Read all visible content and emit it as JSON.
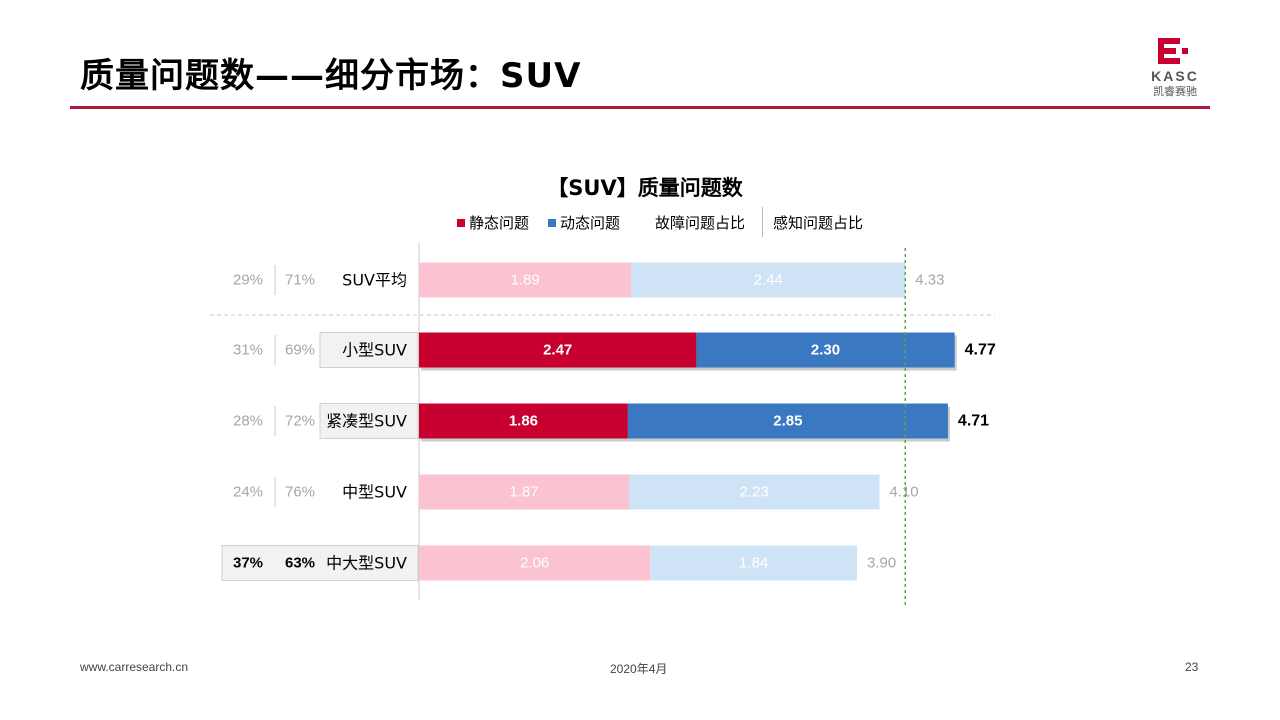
{
  "page": {
    "title": "质量问题数——细分市场：SUV",
    "logo": {
      "name": "KASC",
      "subtitle": "凯睿赛驰"
    },
    "footer": {
      "website": "www.carresearch.cn",
      "date": "2020年4月",
      "page_number": "23"
    }
  },
  "colors": {
    "static_highlight": "#c8002f",
    "dynamic_highlight": "#3b78c2",
    "static_faded": "#fbc3d2",
    "dynamic_faded": "#cfe3f6",
    "title_rule": "#b0173a",
    "reference_line": "#5aa84a"
  },
  "chart_data": {
    "type": "bar",
    "orientation": "horizontal",
    "stacked": true,
    "title": "【SUV】质量问题数",
    "legend": {
      "items": [
        "静态问题",
        "动态问题"
      ],
      "column_headers": [
        "故障问题占比",
        "感知问题占比"
      ],
      "placement": "top"
    },
    "categories": [
      "SUV平均",
      "小型SUV",
      "紧凑型SUV",
      "中型SUV",
      "中大型SUV"
    ],
    "series": [
      {
        "name": "静态问题",
        "values": [
          1.89,
          2.47,
          1.86,
          1.87,
          2.06
        ]
      },
      {
        "name": "动态问题",
        "values": [
          2.44,
          2.3,
          2.85,
          2.23,
          1.84
        ]
      }
    ],
    "value_labels": {
      "static": [
        "1.89",
        "2.47",
        "1.86",
        "1.87",
        "2.06"
      ],
      "dynamic": [
        "2.44",
        "2.30",
        "2.85",
        "2.23",
        "1.84"
      ]
    },
    "totals": [
      "4.33",
      "4.77",
      "4.71",
      "4.10",
      "3.90"
    ],
    "total_values": [
      4.33,
      4.77,
      4.71,
      4.1,
      3.9
    ],
    "fault_share": [
      "29%",
      "31%",
      "28%",
      "24%",
      "37%"
    ],
    "perception_share": [
      "71%",
      "69%",
      "72%",
      "76%",
      "63%"
    ],
    "highlighted": [
      false,
      true,
      true,
      false,
      false
    ],
    "emphasized_shares": [
      false,
      false,
      false,
      false,
      true
    ],
    "reference_line_value": 4.33,
    "xlim": [
      0,
      5.0
    ]
  }
}
